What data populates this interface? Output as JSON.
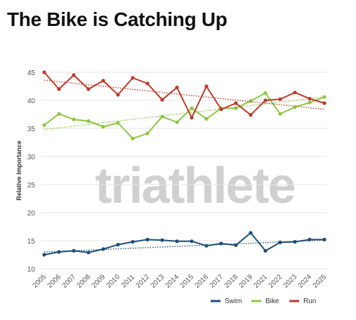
{
  "title": "The Bike is Catching Up",
  "watermark": "triathlete",
  "chart_data": {
    "type": "line",
    "title": "The Bike is Catching Up",
    "xlabel": "",
    "ylabel": "Relative Importance",
    "ylim": [
      10,
      46
    ],
    "yticks": [
      10,
      15,
      20,
      25,
      30,
      35,
      40,
      45
    ],
    "x": [
      "2005",
      "2006",
      "2007",
      "2008",
      "2009",
      "2010",
      "2011",
      "2012",
      "2013",
      "2014",
      "2015",
      "2016",
      "2017",
      "2018",
      "2019",
      "2021",
      "2022",
      "2023",
      "2024",
      "2025"
    ],
    "grid": true,
    "legend_position": "bottom-right",
    "series": [
      {
        "name": "Swim",
        "color": "#1f4e79",
        "values": [
          12.5,
          13.0,
          13.2,
          12.9,
          13.5,
          14.3,
          14.8,
          15.2,
          15.1,
          14.9,
          14.9,
          14.1,
          14.5,
          14.2,
          16.4,
          13.2,
          14.7,
          14.8,
          15.2,
          15.2
        ],
        "trend": [
          13.0,
          15.1
        ]
      },
      {
        "name": "Bike",
        "color": "#8cc63f",
        "values": [
          35.6,
          37.6,
          36.6,
          36.3,
          35.3,
          36.0,
          33.2,
          34.1,
          37.1,
          36.1,
          38.6,
          36.7,
          38.6,
          38.6,
          39.9,
          41.3,
          37.6,
          38.8,
          39.6,
          40.6
        ],
        "trend": [
          34.8,
          40.6
        ]
      },
      {
        "name": "Run",
        "color": "#c0392b",
        "values": [
          45.0,
          42.0,
          44.5,
          42.0,
          43.5,
          41.0,
          44.0,
          43.0,
          40.1,
          42.3,
          36.9,
          42.5,
          38.4,
          39.5,
          37.4,
          40.0,
          40.2,
          41.4,
          40.3,
          39.5
        ],
        "trend": [
          43.6,
          38.4
        ]
      }
    ]
  }
}
